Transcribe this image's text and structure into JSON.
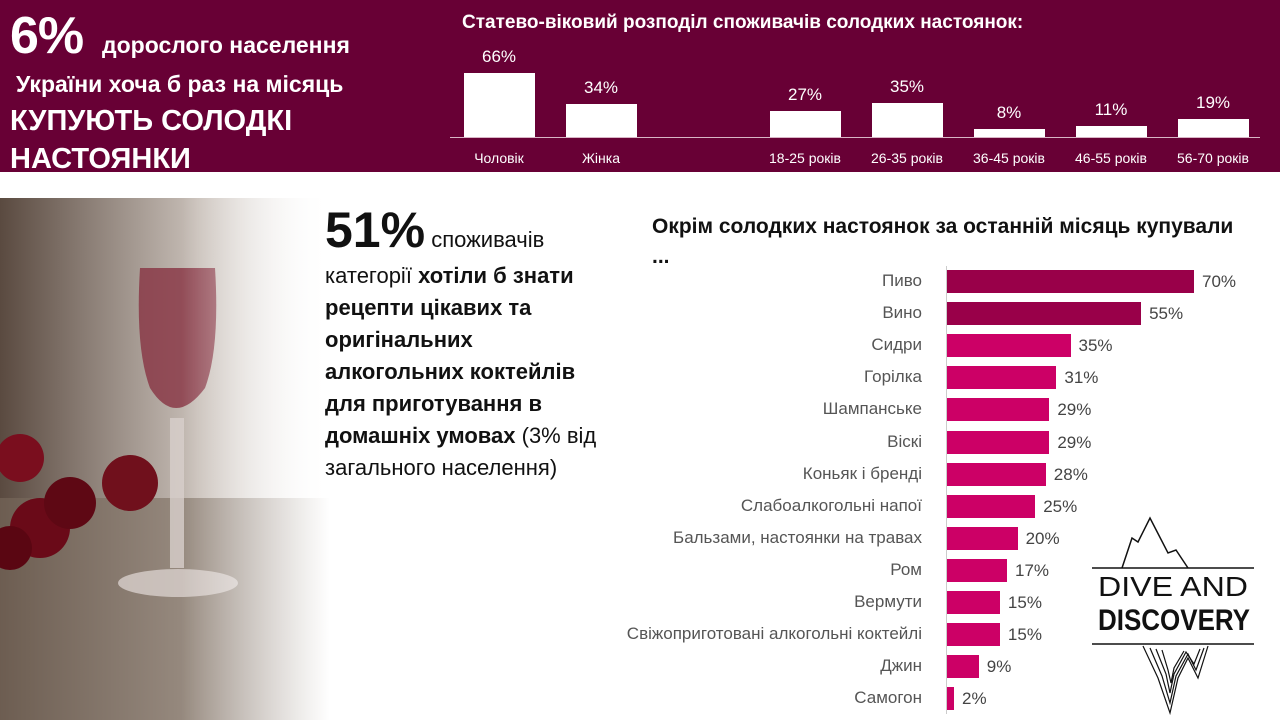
{
  "header": {
    "big_number": "6%",
    "line1": "дорослого населення",
    "line2": "України хоча б раз на місяць",
    "line3": "КУПУЮТЬ СОЛОДКІ НАСТОЯНКИ"
  },
  "stat": {
    "number": "51%",
    "text_a": " споживачів категорії ",
    "text_bold": "хотіли б знати рецепти цікавих та оригінальних алкогольних коктейлів для приготування в домашніх умовах",
    "text_b": " (3% від загального населення)"
  },
  "logo": {
    "line1": "DIVE AND",
    "line2": "DISCOVERY"
  },
  "chart_data": [
    {
      "type": "bar",
      "title": "Статево-віковий розподіл споживачів солодких настоянок:",
      "categories": [
        "Чоловік",
        "Жінка",
        "18-25 років",
        "26-35 років",
        "36-45 років",
        "46-55 років",
        "56-70 років"
      ],
      "values": [
        66,
        34,
        27,
        35,
        8,
        11,
        19
      ],
      "labels": [
        "66%",
        "34%",
        "27%",
        "35%",
        "8%",
        "11%",
        "19%"
      ],
      "bar_color": "#ffffff",
      "ylim": [
        0,
        70
      ]
    },
    {
      "type": "bar",
      "orientation": "horizontal",
      "title": "Окрім солодких настоянок за останній місяць купували ...",
      "categories": [
        "Пиво",
        "Вино",
        "Сидри",
        "Горілка",
        "Шампанське",
        "Віскі",
        "Коньяк і бренді",
        "Слабоалкогольні напої",
        "Бальзами, настоянки на травах",
        "Ром",
        "Вермути",
        "Свіжоприготовані алкогольні коктейлі",
        "Джин",
        "Самогон"
      ],
      "values": [
        70,
        55,
        35,
        31,
        29,
        29,
        28,
        25,
        20,
        17,
        15,
        15,
        9,
        2
      ],
      "labels": [
        "70%",
        "55%",
        "35%",
        "31%",
        "29%",
        "29%",
        "28%",
        "25%",
        "20%",
        "17%",
        "15%",
        "15%",
        "9%",
        "2%"
      ],
      "colors": {
        "top": "#990049",
        "rest": "#cc0066"
      },
      "xlim": [
        0,
        70
      ]
    }
  ],
  "colors": {
    "banner": "#680035"
  }
}
